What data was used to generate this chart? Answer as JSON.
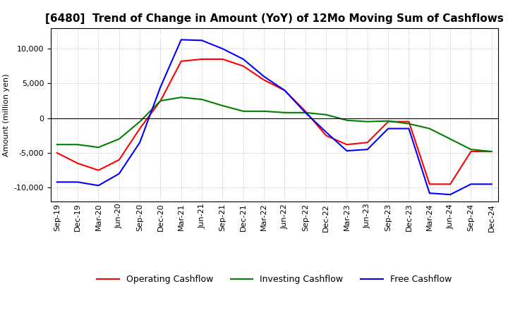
{
  "title": "[6480]  Trend of Change in Amount (YoY) of 12Mo Moving Sum of Cashflows",
  "ylabel": "Amount (million yen)",
  "x_labels": [
    "Sep-19",
    "Dec-19",
    "Mar-20",
    "Jun-20",
    "Sep-20",
    "Dec-20",
    "Mar-21",
    "Jun-21",
    "Sep-21",
    "Dec-21",
    "Mar-22",
    "Jun-22",
    "Sep-22",
    "Dec-22",
    "Mar-23",
    "Jun-23",
    "Sep-23",
    "Dec-23",
    "Mar-24",
    "Jun-24",
    "Sep-24",
    "Dec-24"
  ],
  "operating": [
    -5000,
    -6500,
    -7500,
    -6000,
    -1500,
    2500,
    8200,
    8500,
    8500,
    7500,
    5500,
    4000,
    1000,
    -2500,
    -3800,
    -3500,
    -500,
    -500,
    -9500,
    -9500,
    -4800,
    -4800
  ],
  "investing": [
    -3800,
    -3800,
    -4200,
    -3000,
    -500,
    2500,
    3000,
    2700,
    1800,
    1000,
    1000,
    800,
    800,
    500,
    -300,
    -500,
    -400,
    -800,
    -1500,
    -3000,
    -4500,
    -4800
  ],
  "free": [
    -9200,
    -9200,
    -9700,
    -8000,
    -3500,
    4500,
    11300,
    11200,
    10000,
    8500,
    6000,
    4000,
    800,
    -2000,
    -4700,
    -4500,
    -1500,
    -1500,
    -10800,
    -11000,
    -9500,
    -9500
  ],
  "operating_color": "#ff0000",
  "investing_color": "#008000",
  "free_color": "#0000ff",
  "ylim": [
    -12000,
    13000
  ],
  "yticks": [
    -10000,
    -5000,
    0,
    5000,
    10000
  ],
  "background_color": "#ffffff",
  "grid_color": "#b0b0b0",
  "title_fontsize": 11,
  "axis_fontsize": 8,
  "legend_fontsize": 9
}
